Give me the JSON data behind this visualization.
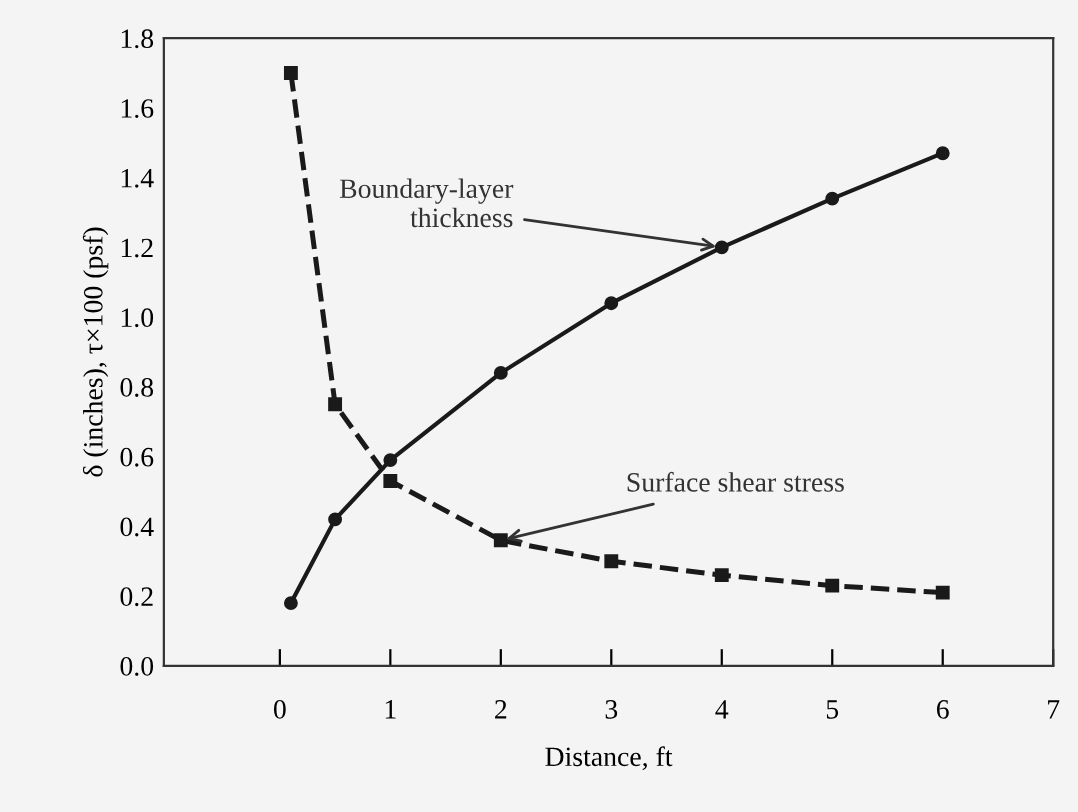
{
  "chart_data": {
    "type": "line",
    "xlabel": "Distance, ft",
    "ylabel": "δ (inches), τ×100 (psf)",
    "xlim": [
      -1.05,
      7
    ],
    "xticks": [
      0,
      1,
      2,
      3,
      4,
      5,
      6,
      7
    ],
    "ylim": [
      0,
      1.8
    ],
    "yticks": [
      {
        "value": 0,
        "label": "0.0"
      },
      0.2,
      0.4,
      0.6,
      0.8,
      {
        "value": 1,
        "label": "1.0"
      },
      1.2,
      1.4,
      1.6,
      1.8
    ],
    "grid": false,
    "legend": false,
    "series": [
      {
        "color": "#1a1a1a",
        "marker": "circle",
        "line_style": "solid",
        "x": [
          0.1,
          0.5,
          1,
          2,
          3,
          4,
          5,
          6
        ],
        "values": [
          0.18,
          0.42,
          0.59,
          0.84,
          1.04,
          1.2,
          1.34,
          1.47
        ]
      },
      {
        "color": "#1a1a1a",
        "marker": "square",
        "line_style": "dashed",
        "x": [
          0.1,
          0.5,
          1,
          2,
          3,
          4,
          5,
          6
        ],
        "values": [
          1.7,
          0.75,
          0.53,
          0.36,
          0.3,
          0.26,
          0.23,
          0.21
        ]
      }
    ],
    "annotations": [
      {
        "text": "Boundary-layer\nthickness",
        "x": 4,
        "y": 1.2
      },
      {
        "text": "Surface shear stress",
        "x": 2,
        "y": 0.36
      }
    ]
  }
}
